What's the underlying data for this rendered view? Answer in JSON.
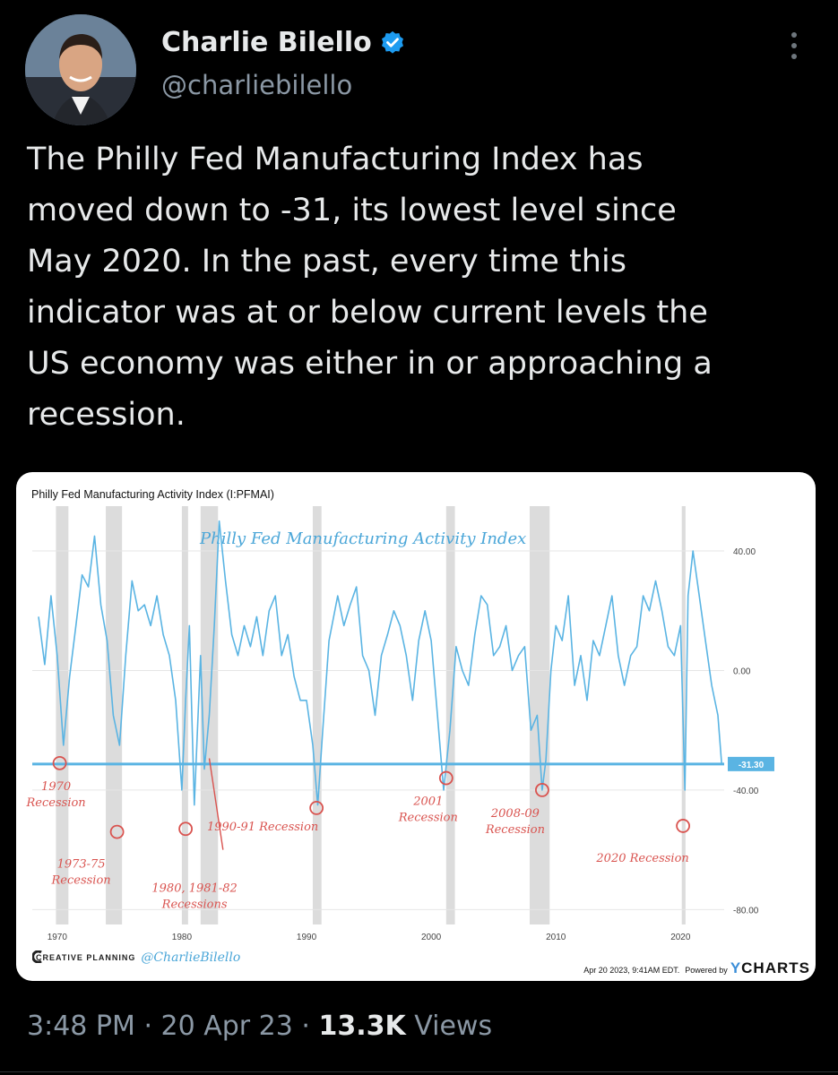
{
  "author": {
    "name": "Charlie Bilello",
    "handle": "@charliebilello"
  },
  "tweet": {
    "text": "The Philly Fed Manufacturing Index has\nmoved down to -31, its lowest level since\nMay 2020. In the past, every time this\nindicator was at or below current levels the\nUS economy was either in or approaching a\nrecession."
  },
  "meta": {
    "time": "3:48 PM",
    "date": "20 Apr 23",
    "views_count": "13.3K",
    "views_label": "Views"
  },
  "chart": {
    "header": "Philly Fed Manufacturing Activity Index (I:PFMAI)",
    "overlay_title": "Philly Fed Manufacturing Activity Index",
    "footer_brand": "CREATIVE PLANNING",
    "footer_handle": "@CharlieBilello",
    "footer_timestamp": "Apr 20 2023, 9:41AM EDT.",
    "footer_powered": "Powered by",
    "footer_logo_y": "Y",
    "footer_logo_rest": "CHARTS",
    "current_label": "-31.30"
  },
  "chart_data": {
    "type": "line",
    "title": "Philly Fed Manufacturing Activity Index",
    "series": [
      {
        "name": "Philly Fed Manufacturing Activity Index",
        "x": [
          1968.5,
          1969.0,
          1969.5,
          1970.0,
          1970.5,
          1971.0,
          1971.5,
          1972.0,
          1972.5,
          1973.0,
          1973.5,
          1974.0,
          1974.5,
          1975.0,
          1975.5,
          1976.0,
          1976.5,
          1977.0,
          1977.5,
          1978.0,
          1978.5,
          1979.0,
          1979.5,
          1980.0,
          1980.3,
          1980.6,
          1981.0,
          1981.5,
          1981.8,
          1982.2,
          1982.6,
          1983.0,
          1983.5,
          1984.0,
          1984.5,
          1985.0,
          1985.5,
          1986.0,
          1986.5,
          1987.0,
          1987.5,
          1988.0,
          1988.5,
          1989.0,
          1989.5,
          1990.0,
          1990.5,
          1990.9,
          1991.3,
          1991.8,
          1992.5,
          1993.0,
          1993.5,
          1994.0,
          1994.5,
          1995.0,
          1995.5,
          1996.0,
          1996.5,
          1997.0,
          1997.5,
          1998.0,
          1998.5,
          1999.0,
          1999.5,
          2000.0,
          2000.5,
          2001.0,
          2001.5,
          2002.0,
          2002.5,
          2003.0,
          2003.5,
          2004.0,
          2004.5,
          2005.0,
          2005.5,
          2006.0,
          2006.5,
          2007.0,
          2007.5,
          2008.0,
          2008.5,
          2008.9,
          2009.2,
          2009.6,
          2010.0,
          2010.5,
          2011.0,
          2011.5,
          2012.0,
          2012.5,
          2013.0,
          2013.5,
          2014.0,
          2014.5,
          2015.0,
          2015.5,
          2016.0,
          2016.5,
          2017.0,
          2017.5,
          2018.0,
          2018.5,
          2019.0,
          2019.5,
          2020.0,
          2020.35,
          2020.6,
          2021.0,
          2021.5,
          2022.0,
          2022.5,
          2023.0,
          2023.3
        ],
        "y": [
          18,
          2,
          25,
          5,
          -25,
          -2,
          15,
          32,
          28,
          45,
          22,
          10,
          -15,
          -25,
          5,
          30,
          20,
          22,
          15,
          25,
          12,
          5,
          -10,
          -40,
          -10,
          15,
          -45,
          5,
          -33,
          -15,
          15,
          50,
          30,
          12,
          5,
          15,
          8,
          18,
          5,
          20,
          25,
          5,
          12,
          -2,
          -10,
          -10,
          -25,
          -45,
          -20,
          10,
          25,
          15,
          22,
          28,
          5,
          0,
          -15,
          5,
          12,
          20,
          15,
          5,
          -10,
          10,
          20,
          10,
          -15,
          -40,
          -20,
          8,
          0,
          -5,
          12,
          25,
          22,
          5,
          8,
          15,
          0,
          5,
          8,
          -20,
          -15,
          -40,
          -30,
          0,
          15,
          10,
          25,
          -5,
          5,
          -10,
          10,
          5,
          15,
          25,
          5,
          -5,
          5,
          8,
          25,
          20,
          30,
          20,
          8,
          5,
          15,
          -40,
          25,
          40,
          25,
          10,
          -5,
          -15,
          -31.3
        ]
      }
    ],
    "ylim": [
      -85,
      55
    ],
    "xlim": [
      1968,
      2023.5
    ],
    "y_ticks": [
      "40.00",
      "0.00",
      "-40.00",
      "-80.00"
    ],
    "y_tick_values": [
      40,
      0,
      -40,
      -80
    ],
    "x_ticks": [
      "1970",
      "1980",
      "1990",
      "2000",
      "2010",
      "2020"
    ],
    "x_tick_values": [
      1970,
      1980,
      1990,
      2000,
      2010,
      2020
    ],
    "reference_line": -31.3,
    "recession_bands": [
      [
        1969.9,
        1970.9
      ],
      [
        1973.9,
        1975.2
      ],
      [
        1980.0,
        1980.5
      ],
      [
        1981.5,
        1982.9
      ],
      [
        1990.5,
        1991.2
      ],
      [
        2001.2,
        2001.9
      ],
      [
        2007.9,
        2009.5
      ],
      [
        2020.1,
        2020.4
      ]
    ],
    "annotations": [
      {
        "lines": [
          "1970",
          "Recession"
        ],
        "x": 1970.2,
        "marker_y": -31
      },
      {
        "lines": [
          "1973-75",
          "Recession"
        ],
        "x": 1974.8,
        "marker_y": -54
      },
      {
        "lines": [
          "1980, 1981-82",
          "Recessions"
        ],
        "x": 1980.3,
        "marker_y": -53
      },
      {
        "lines": [
          "1990-91 Recession"
        ],
        "x": 1990.8,
        "marker_y": -46
      },
      {
        "lines": [
          "2001",
          "Recession"
        ],
        "x": 2001.2,
        "marker_y": -36
      },
      {
        "lines": [
          "2008-09",
          "Recession"
        ],
        "x": 2008.9,
        "marker_y": -40
      },
      {
        "lines": [
          "2020 Recession"
        ],
        "x": 2020.2,
        "marker_y": -52
      }
    ]
  }
}
